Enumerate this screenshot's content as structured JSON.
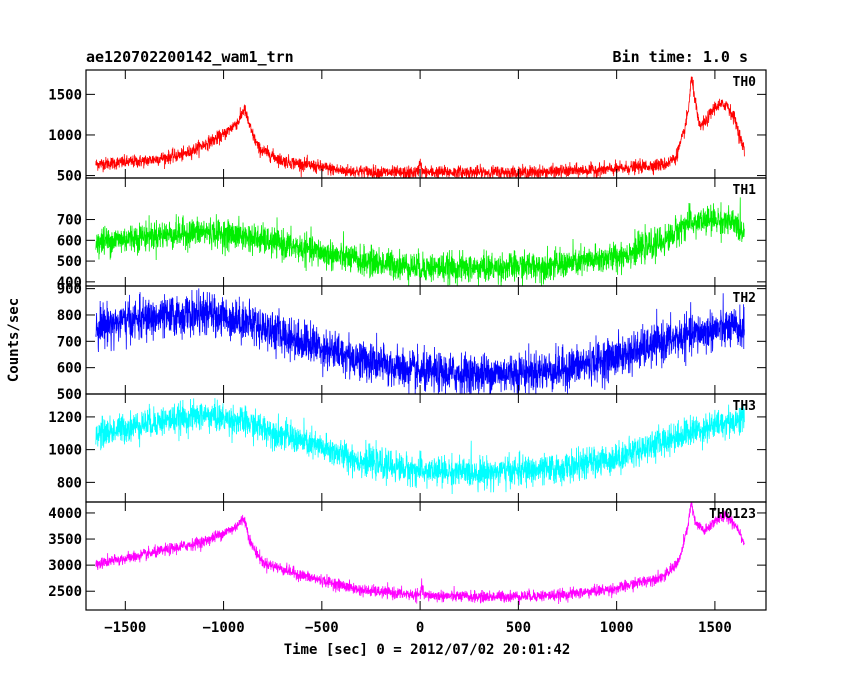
{
  "chart_data": {
    "type": "line",
    "title_left": "ae120702200142_wam1_trn",
    "title_right": "Bin time: 1.0 s",
    "xlabel": "Time [sec] 0 = 2012/07/02 20:01:42",
    "ylabel": "Counts/sec",
    "xlim": [
      -1700,
      1760
    ],
    "x_ticks": [
      -1500,
      -1000,
      -500,
      0,
      500,
      1000,
      1500
    ],
    "x_tick_labels": [
      "−1500",
      "−1000",
      "−500",
      "0",
      "500",
      "1000",
      "1500"
    ],
    "x_data_range": [
      -1650,
      1650
    ],
    "grid": false,
    "panels": [
      {
        "name": "TH0",
        "color": "#ff0000",
        "ylim": [
          470,
          1800
        ],
        "y_ticks": [
          500,
          1000,
          1500
        ],
        "noise": 40,
        "profile": [
          [
            -1650,
            640
          ],
          [
            -1400,
            680
          ],
          [
            -1200,
            760
          ],
          [
            -1000,
            1000
          ],
          [
            -920,
            1180
          ],
          [
            -895,
            1330
          ],
          [
            -860,
            1050
          ],
          [
            -820,
            830
          ],
          [
            -700,
            680
          ],
          [
            -400,
            560
          ],
          [
            -100,
            530
          ],
          [
            -10,
            540
          ],
          [
            0,
            700
          ],
          [
            10,
            540
          ],
          [
            200,
            540
          ],
          [
            600,
            540
          ],
          [
            1000,
            580
          ],
          [
            1250,
            640
          ],
          [
            1300,
            720
          ],
          [
            1340,
            1000
          ],
          [
            1365,
            1300
          ],
          [
            1380,
            1700
          ],
          [
            1395,
            1500
          ],
          [
            1420,
            1100
          ],
          [
            1450,
            1150
          ],
          [
            1500,
            1350
          ],
          [
            1560,
            1380
          ],
          [
            1600,
            1200
          ],
          [
            1650,
            800
          ]
        ]
      },
      {
        "name": "TH1",
        "color": "#00ee00",
        "ylim": [
          380,
          900
        ],
        "y_ticks": [
          400,
          500,
          600,
          700
        ],
        "noise": 35,
        "profile": [
          [
            -1650,
            590
          ],
          [
            -1400,
            620
          ],
          [
            -1100,
            640
          ],
          [
            -900,
            620
          ],
          [
            -600,
            560
          ],
          [
            -300,
            500
          ],
          [
            0,
            470
          ],
          [
            300,
            465
          ],
          [
            700,
            480
          ],
          [
            1000,
            520
          ],
          [
            1250,
            600
          ],
          [
            1350,
            680
          ],
          [
            1500,
            700
          ],
          [
            1600,
            680
          ],
          [
            1650,
            640
          ]
        ]
      },
      {
        "name": "TH2",
        "color": "#0000ff",
        "ylim": [
          500,
          910
        ],
        "y_ticks": [
          500,
          600,
          700,
          800,
          900
        ],
        "noise": 38,
        "profile": [
          [
            -1650,
            760
          ],
          [
            -1400,
            785
          ],
          [
            -1100,
            805
          ],
          [
            -900,
            780
          ],
          [
            -600,
            700
          ],
          [
            -300,
            630
          ],
          [
            0,
            580
          ],
          [
            300,
            575
          ],
          [
            700,
            590
          ],
          [
            1000,
            640
          ],
          [
            1300,
            710
          ],
          [
            1500,
            745
          ],
          [
            1650,
            750
          ]
        ]
      },
      {
        "name": "TH3",
        "color": "#00ffff",
        "ylim": [
          680,
          1340
        ],
        "y_ticks": [
          800,
          1000,
          1200
        ],
        "noise": 45,
        "profile": [
          [
            -1650,
            1090
          ],
          [
            -1400,
            1160
          ],
          [
            -1100,
            1210
          ],
          [
            -900,
            1170
          ],
          [
            -600,
            1050
          ],
          [
            -300,
            930
          ],
          [
            0,
            870
          ],
          [
            300,
            860
          ],
          [
            700,
            880
          ],
          [
            1000,
            950
          ],
          [
            1300,
            1080
          ],
          [
            1500,
            1150
          ],
          [
            1650,
            1190
          ]
        ]
      },
      {
        "name": "TH0123",
        "color": "#ff00ff",
        "ylim": [
          2140,
          4210
        ],
        "y_ticks": [
          2500,
          3000,
          3500,
          4000
        ],
        "noise": 55,
        "profile": [
          [
            -1650,
            3020
          ],
          [
            -1400,
            3200
          ],
          [
            -1100,
            3450
          ],
          [
            -950,
            3700
          ],
          [
            -895,
            3900
          ],
          [
            -860,
            3400
          ],
          [
            -800,
            3050
          ],
          [
            -600,
            2800
          ],
          [
            -300,
            2520
          ],
          [
            0,
            2420
          ],
          [
            10,
            2600
          ],
          [
            20,
            2420
          ],
          [
            300,
            2390
          ],
          [
            700,
            2420
          ],
          [
            1000,
            2550
          ],
          [
            1250,
            2800
          ],
          [
            1320,
            3100
          ],
          [
            1360,
            3700
          ],
          [
            1380,
            4200
          ],
          [
            1400,
            3800
          ],
          [
            1450,
            3650
          ],
          [
            1500,
            3850
          ],
          [
            1560,
            3950
          ],
          [
            1620,
            3700
          ],
          [
            1650,
            3400
          ]
        ]
      }
    ]
  }
}
